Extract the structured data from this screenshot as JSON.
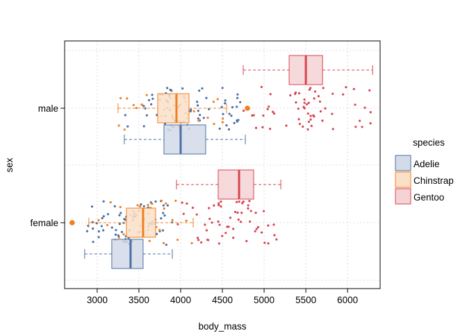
{
  "chart_data": {
    "type": "boxplot",
    "title": "",
    "xlabel": "body_mass",
    "ylabel": "sex",
    "xlim": [
      2610,
      6390
    ],
    "x_ticks": [
      3000,
      3500,
      4000,
      4500,
      5000,
      5500,
      6000
    ],
    "categories": [
      "female",
      "male"
    ],
    "grid": true,
    "legend": {
      "title": "species",
      "position": "right",
      "entries": [
        "Adelie",
        "Chinstrap",
        "Gentoo"
      ]
    },
    "colors": {
      "Adelie": {
        "line": "#4a6fa5",
        "fill": "#d3dbe8"
      },
      "Chinstrap": {
        "line": "#ee7f22",
        "fill": "#fbe0c8"
      },
      "Gentoo": {
        "line": "#d84350",
        "fill": "#f4d2d5"
      }
    },
    "series": [
      {
        "name": "Adelie",
        "boxes": {
          "female": {
            "whisker_low": 2850,
            "q1": 3175,
            "median": 3400,
            "q3": 3550,
            "whisker_high": 3900,
            "outliers": []
          },
          "male": {
            "whisker_low": 3325,
            "q1": 3800,
            "median": 4000,
            "q3": 4300,
            "whisker_high": 4775,
            "outliers": []
          }
        }
      },
      {
        "name": "Chinstrap",
        "boxes": {
          "female": {
            "whisker_low": 2900,
            "q1": 3350,
            "median": 3550,
            "q3": 3700,
            "whisker_high": 4150,
            "outliers": [
              2700
            ]
          },
          "male": {
            "whisker_low": 3250,
            "q1": 3725,
            "median": 3950,
            "q3": 4100,
            "whisker_high": 4550,
            "outliers": [
              4800
            ]
          }
        }
      },
      {
        "name": "Gentoo",
        "boxes": {
          "female": {
            "whisker_low": 3950,
            "q1": 4450,
            "median": 4700,
            "q3": 4875,
            "whisker_high": 5200,
            "outliers": []
          },
          "male": {
            "whisker_low": 4750,
            "q1": 5300,
            "median": 5500,
            "q3": 5700,
            "whisker_high": 6300,
            "outliers": []
          }
        }
      }
    ]
  }
}
